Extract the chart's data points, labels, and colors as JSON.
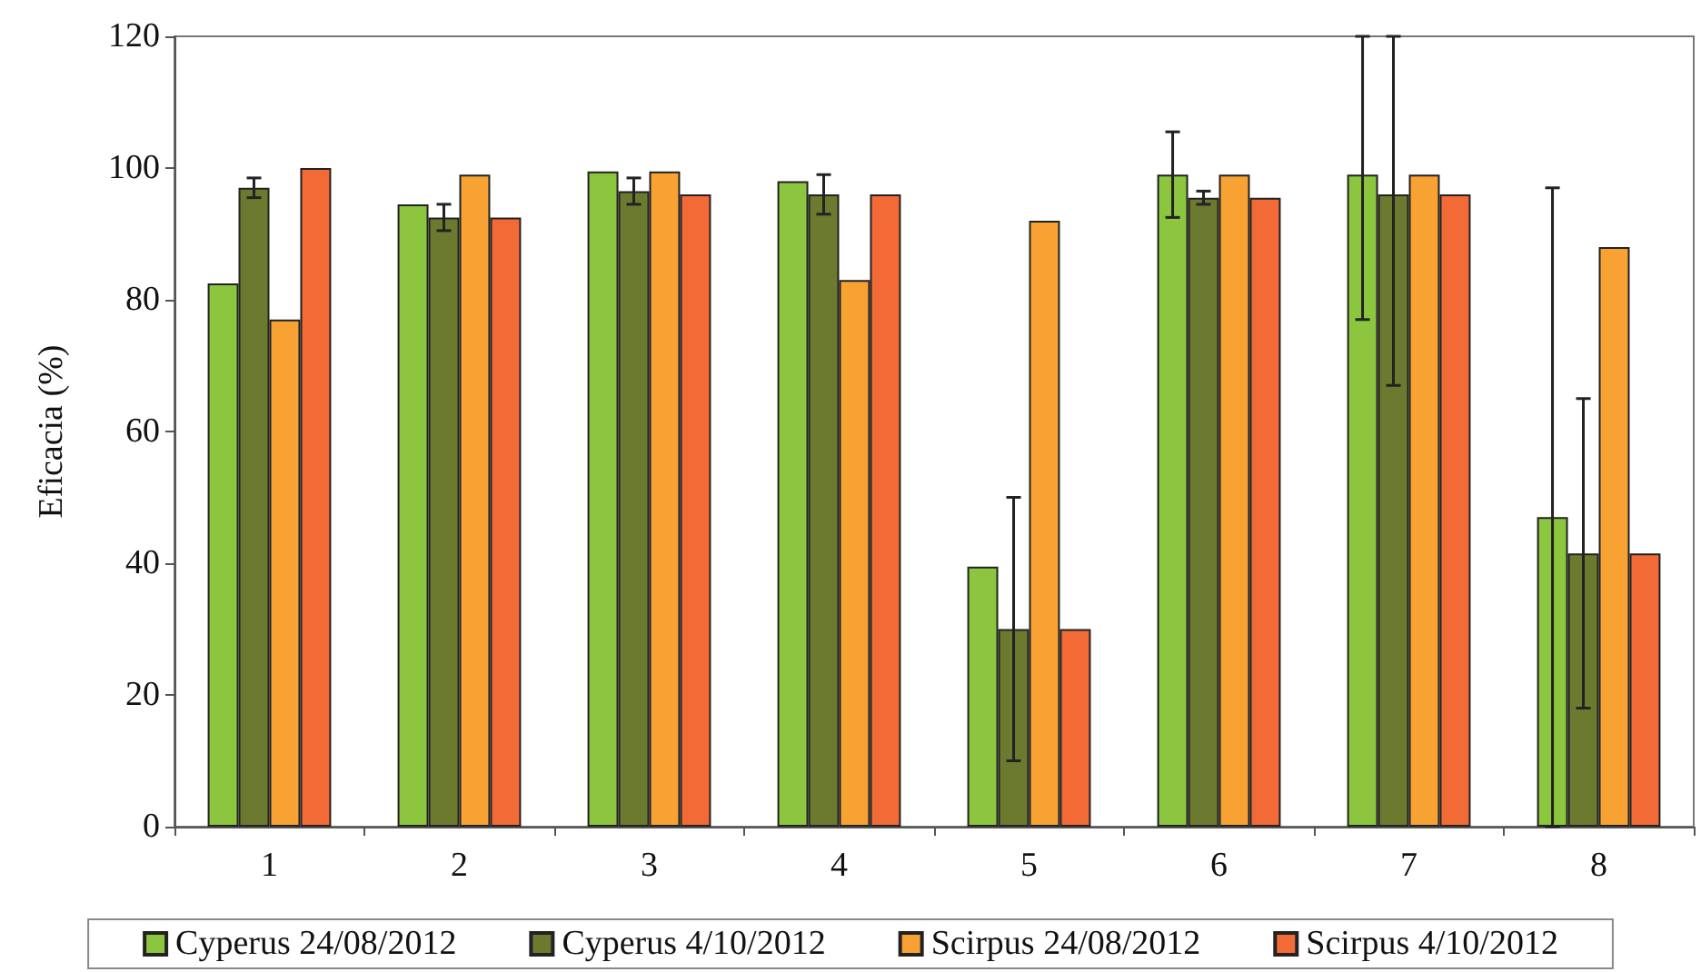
{
  "chart_data": {
    "type": "bar",
    "ylabel": "Eficacia (%)",
    "categories": [
      "1",
      "2",
      "3",
      "4",
      "5",
      "6",
      "7",
      "8"
    ],
    "series": [
      {
        "name": "Cyperus 24/08/2012",
        "color": "#8cc63f",
        "values": [
          82.5,
          94.5,
          99.5,
          98,
          39.5,
          99,
          99,
          47
        ],
        "errors": [
          null,
          null,
          null,
          null,
          null,
          [
            92.5,
            105.5
          ],
          [
            77,
            120
          ],
          [
            0,
            97
          ]
        ]
      },
      {
        "name": "Cyperus 4/10/2012",
        "color": "#6b7a2e",
        "values": [
          97,
          92.5,
          96.5,
          96,
          30,
          95.5,
          96,
          41.5
        ],
        "errors": [
          [
            95.5,
            98.5
          ],
          [
            90.5,
            94.5
          ],
          [
            94.5,
            98.5
          ],
          [
            93,
            99
          ],
          [
            10,
            50
          ],
          [
            94.5,
            96.5
          ],
          [
            67,
            120
          ],
          [
            18,
            65
          ]
        ]
      },
      {
        "name": "Scirpus 24/08/2012",
        "color": "#f7a233",
        "values": [
          77,
          99,
          99.5,
          83,
          92,
          99,
          99,
          88
        ]
      },
      {
        "name": "Scirpus 4/10/2012",
        "color": "#f26a35",
        "values": [
          100,
          92.5,
          96,
          96,
          30,
          95.5,
          96,
          41.5
        ]
      }
    ],
    "ylim": [
      0,
      120
    ],
    "yticks": [
      0,
      20,
      40,
      60,
      80,
      100,
      120
    ],
    "grid": false,
    "legend": "bottom"
  }
}
